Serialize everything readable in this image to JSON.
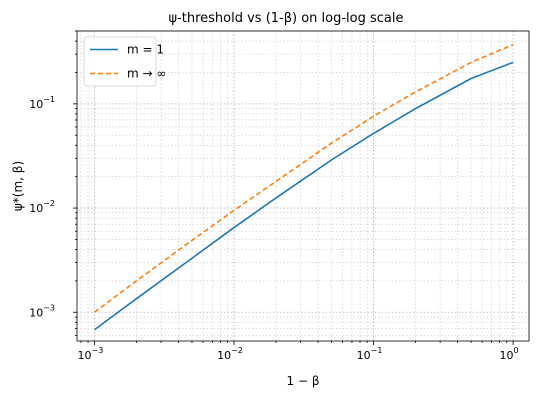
{
  "chart_data": {
    "type": "line",
    "title": "ψ-threshold vs (1-β) on log-log scale",
    "xlabel": "1 − β",
    "ylabel": "ψ*(m, β)",
    "xscale": "log",
    "yscale": "log",
    "xlim": [
      0.00075,
      1.3
    ],
    "ylim": [
      0.00053,
      0.5
    ],
    "grid": "both major and minor, dotted",
    "legend_position": "top-left",
    "x_ticks": [
      {
        "value": 0.001,
        "base": "10",
        "exp": "−3"
      },
      {
        "value": 0.01,
        "base": "10",
        "exp": "−2"
      },
      {
        "value": 0.1,
        "base": "10",
        "exp": "−1"
      },
      {
        "value": 1,
        "base": "10",
        "exp": "0"
      }
    ],
    "y_ticks": [
      {
        "value": 0.001,
        "base": "10",
        "exp": "−3"
      },
      {
        "value": 0.01,
        "base": "10",
        "exp": "−2"
      },
      {
        "value": 0.1,
        "base": "10",
        "exp": "−1"
      }
    ],
    "series": [
      {
        "name": "m = 1",
        "color": "#1f77b4",
        "style": "solid",
        "x": [
          0.001,
          0.002,
          0.005,
          0.01,
          0.02,
          0.05,
          0.1,
          0.2,
          0.5,
          1.0
        ],
        "y": [
          0.00068,
          0.00135,
          0.0033,
          0.0065,
          0.0125,
          0.029,
          0.052,
          0.09,
          0.175,
          0.25
        ]
      },
      {
        "name": "m → ∞",
        "color": "#ff7f0e",
        "style": "dashed",
        "x": [
          0.001,
          0.002,
          0.005,
          0.01,
          0.02,
          0.05,
          0.1,
          0.2,
          0.5,
          1.0
        ],
        "y": [
          0.001,
          0.002,
          0.0049,
          0.0095,
          0.018,
          0.042,
          0.076,
          0.13,
          0.25,
          0.37
        ]
      }
    ]
  }
}
